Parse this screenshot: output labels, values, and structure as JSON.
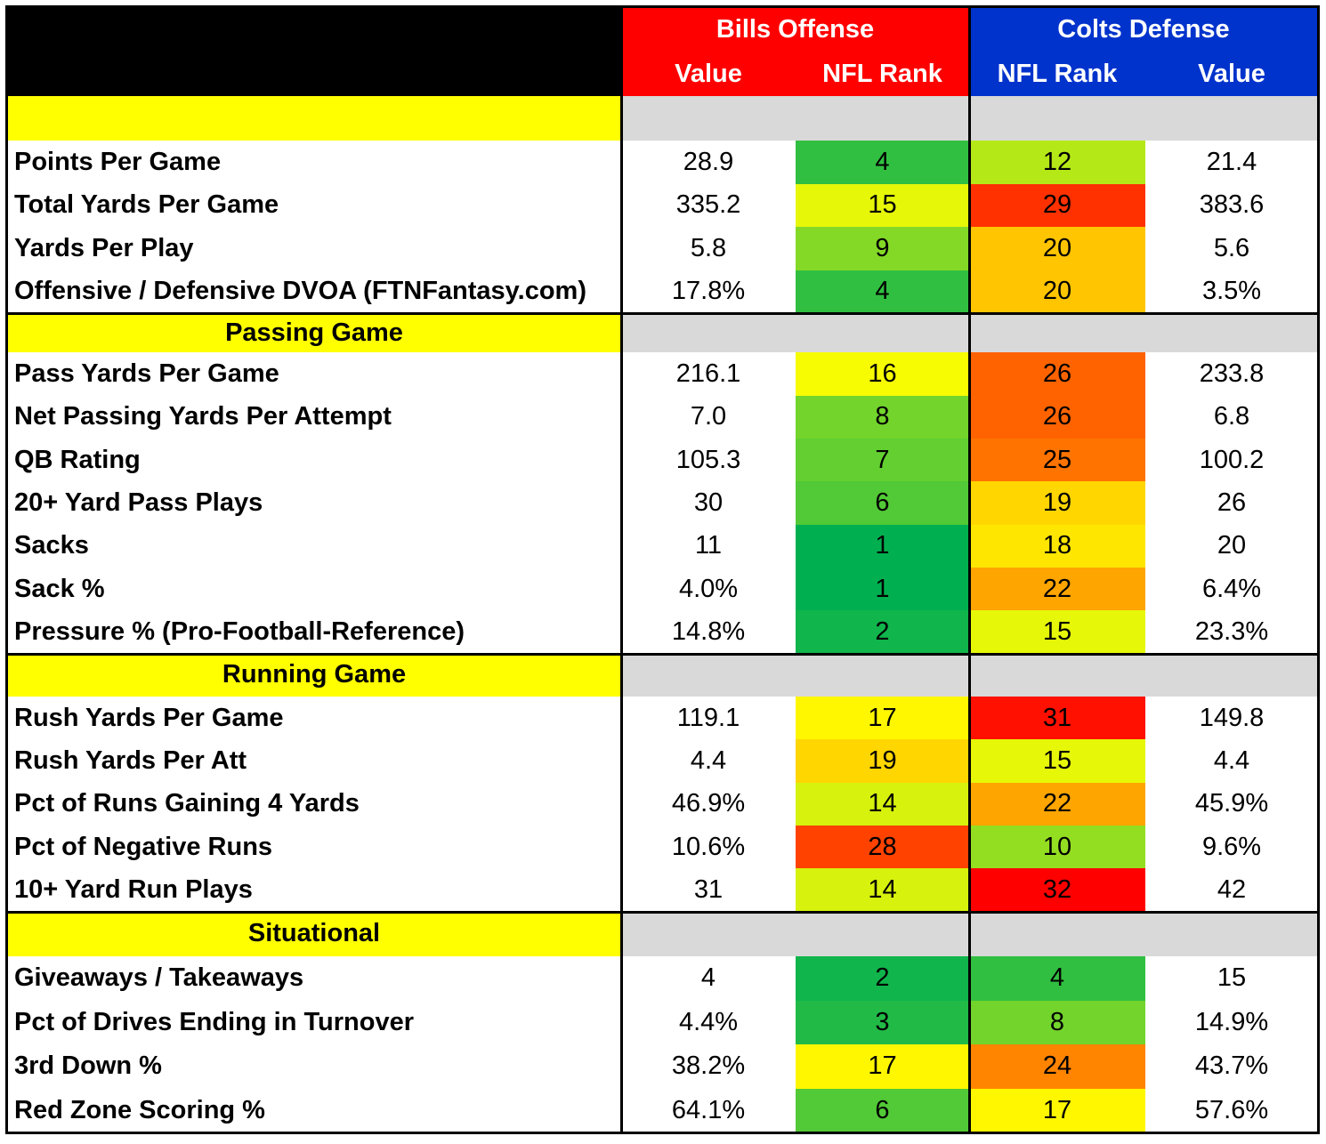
{
  "header": {
    "bills_title": "Bills Offense",
    "colts_title": "Colts Defense",
    "columns": [
      "Value",
      "NFL Rank",
      "NFL Rank",
      "Value"
    ]
  },
  "colors": {
    "bills_header": "#ff0000",
    "colts_header": "#0033cc",
    "section_label_bg": "#ffff00",
    "section_band_bg": "#d9d9d9",
    "rank_scale": "1 = green, 16 = yellow, 32 = red"
  },
  "chart_data": {
    "type": "table",
    "columns": [
      "Bills Offense Value",
      "Bills Offense NFL Rank",
      "Colts Defense NFL Rank",
      "Colts Defense Value"
    ],
    "sections": [
      {
        "title": "",
        "rows": [
          {
            "label": "Points Per Game",
            "bills_value": "28.9",
            "bills_rank": 4,
            "colts_rank": 12,
            "colts_value": "21.4"
          },
          {
            "label": "Total Yards Per Game",
            "bills_value": "335.2",
            "bills_rank": 15,
            "colts_rank": 29,
            "colts_value": "383.6"
          },
          {
            "label": "Yards Per Play",
            "bills_value": "5.8",
            "bills_rank": 9,
            "colts_rank": 20,
            "colts_value": "5.6"
          },
          {
            "label": "Offensive / Defensive DVOA (FTNFantasy.com)",
            "bills_value": "17.8%",
            "bills_rank": 4,
            "colts_rank": 20,
            "colts_value": "3.5%"
          }
        ]
      },
      {
        "title": "Passing Game",
        "rows": [
          {
            "label": "Pass Yards Per Game",
            "bills_value": "216.1",
            "bills_rank": 16,
            "colts_rank": 26,
            "colts_value": "233.8"
          },
          {
            "label": "Net Passing Yards Per Attempt",
            "bills_value": "7.0",
            "bills_rank": 8,
            "colts_rank": 26,
            "colts_value": "6.8"
          },
          {
            "label": "QB Rating",
            "bills_value": "105.3",
            "bills_rank": 7,
            "colts_rank": 25,
            "colts_value": "100.2"
          },
          {
            "label": "20+ Yard Pass Plays",
            "bills_value": "30",
            "bills_rank": 6,
            "colts_rank": 19,
            "colts_value": "26"
          },
          {
            "label": "Sacks",
            "bills_value": "11",
            "bills_rank": 1,
            "colts_rank": 18,
            "colts_value": "20"
          },
          {
            "label": "Sack %",
            "bills_value": "4.0%",
            "bills_rank": 1,
            "colts_rank": 22,
            "colts_value": "6.4%"
          },
          {
            "label": "Pressure % (Pro-Football-Reference)",
            "bills_value": "14.8%",
            "bills_rank": 2,
            "colts_rank": 15,
            "colts_value": "23.3%"
          }
        ]
      },
      {
        "title": "Running Game",
        "rows": [
          {
            "label": "Rush Yards Per Game",
            "bills_value": "119.1",
            "bills_rank": 17,
            "colts_rank": 31,
            "colts_value": "149.8"
          },
          {
            "label": "Rush Yards Per Att",
            "bills_value": "4.4",
            "bills_rank": 19,
            "colts_rank": 15,
            "colts_value": "4.4"
          },
          {
            "label": "Pct of Runs Gaining 4 Yards",
            "bills_value": "46.9%",
            "bills_rank": 14,
            "colts_rank": 22,
            "colts_value": "45.9%"
          },
          {
            "label": "Pct of Negative Runs",
            "bills_value": "10.6%",
            "bills_rank": 28,
            "colts_rank": 10,
            "colts_value": "9.6%"
          },
          {
            "label": "10+ Yard Run Plays",
            "bills_value": "31",
            "bills_rank": 14,
            "colts_rank": 32,
            "colts_value": "42"
          }
        ]
      },
      {
        "title": "Situational",
        "rows": [
          {
            "label": "Giveaways / Takeaways",
            "bills_value": "4",
            "bills_rank": 2,
            "colts_rank": 4,
            "colts_value": "15"
          },
          {
            "label": "Pct of Drives Ending in Turnover",
            "bills_value": "4.4%",
            "bills_rank": 3,
            "colts_rank": 8,
            "colts_value": "14.9%"
          },
          {
            "label": "3rd Down %",
            "bills_value": "38.2%",
            "bills_rank": 17,
            "colts_rank": 24,
            "colts_value": "43.7%"
          },
          {
            "label": "Red Zone Scoring %",
            "bills_value": "64.1%",
            "bills_rank": 6,
            "colts_rank": 17,
            "colts_value": "57.6%"
          }
        ]
      }
    ]
  }
}
